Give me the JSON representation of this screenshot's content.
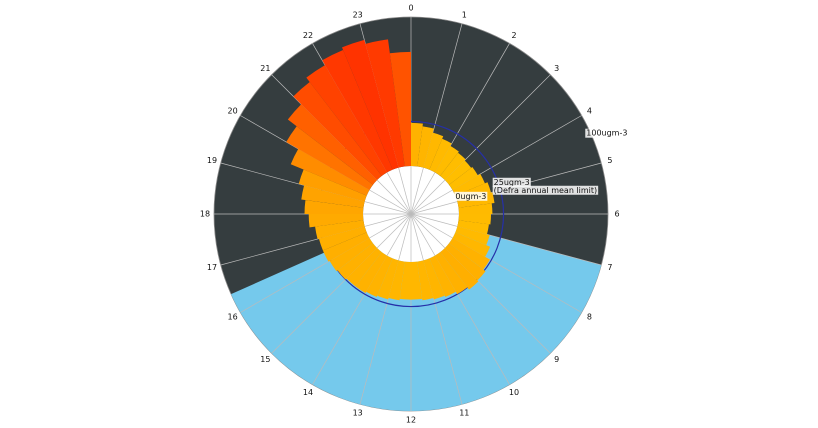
{
  "chart_data": {
    "type": "polar_bar",
    "x": [
      0,
      0.5,
      1,
      1.5,
      2,
      2.5,
      3,
      3.5,
      4,
      4.5,
      5,
      5.5,
      6,
      6.5,
      7,
      7.5,
      8,
      8.5,
      9,
      9.5,
      10,
      10.5,
      11,
      11.5,
      12,
      12.5,
      13,
      13.5,
      14,
      14.5,
      15,
      15.5,
      16,
      16.5,
      17,
      17.5,
      18,
      18.5,
      19,
      19.5,
      20,
      20.5,
      21,
      21.5,
      22,
      22.5,
      23,
      23.5
    ],
    "values": [
      24,
      22,
      19,
      17,
      15,
      14,
      13,
      14,
      16,
      18,
      19,
      17,
      16,
      15,
      17,
      20,
      24,
      26,
      27,
      25,
      23,
      22,
      21,
      20,
      20,
      21,
      22,
      23,
      24,
      24,
      25,
      26,
      27,
      27,
      28,
      32,
      35,
      38,
      42,
      52,
      62,
      70,
      78,
      82,
      86,
      88,
      85,
      75
    ],
    "colormap": [
      "#ffd400",
      "#ff9a00",
      "#ff1500"
    ],
    "xlim": [
      0,
      24
    ],
    "xticks": [
      0,
      1,
      2,
      3,
      4,
      5,
      6,
      7,
      8,
      9,
      10,
      11,
      12,
      13,
      14,
      15,
      16,
      17,
      18,
      19,
      20,
      21,
      22,
      23
    ],
    "rlim": [
      -7,
      100
    ],
    "rticks": [
      {
        "value": 0,
        "label": [
          "0ugm-3"
        ]
      },
      {
        "value": 25,
        "label": [
          "25ugm-3",
          "(Defra annual mean limit)"
        ]
      },
      {
        "value": 100,
        "label": [
          "100ugm-3"
        ]
      }
    ],
    "daylight": [
      7.0,
      16.4
    ],
    "night_color": "#353d3f",
    "day_color": "#75c9ec",
    "limit_color": "#2630a8"
  }
}
